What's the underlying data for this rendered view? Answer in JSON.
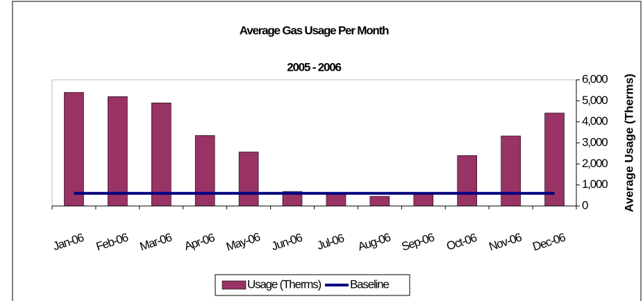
{
  "chart_data": {
    "type": "bar",
    "title": "Average Gas Usage Per Month",
    "subtitle": "2005 - 2006",
    "ylabel": "Average Usage (Therms)",
    "yaxis_side": "right",
    "categories": [
      "Jan-06",
      "Feb-06",
      "Mar-06",
      "Apr-06",
      "May-06",
      "Jun-06",
      "Jul-06",
      "Aug-06",
      "Sep-06",
      "Oct-06",
      "Nov-06",
      "Dec-06"
    ],
    "series": [
      {
        "name": "Usage (Therms)",
        "type": "bar",
        "color": "#993366",
        "values": [
          5400,
          5200,
          4900,
          3350,
          2570,
          690,
          650,
          460,
          640,
          2400,
          3330,
          4420
        ]
      },
      {
        "name": "Baseline",
        "type": "line",
        "color": "#000080",
        "values": [
          600,
          600,
          600,
          600,
          600,
          600,
          600,
          600,
          600,
          600,
          600,
          600
        ]
      }
    ],
    "ylim": [
      0,
      6000
    ],
    "yticks": [
      0,
      {
        "value": 1000,
        "label": "1,000"
      },
      {
        "value": 2000,
        "label": "2,000"
      },
      {
        "value": 3000,
        "label": "3,000"
      },
      {
        "value": 4000,
        "label": "4,000"
      },
      {
        "value": 5000,
        "label": "5,000"
      },
      {
        "value": 6000,
        "label": "6,000"
      }
    ],
    "legend": "bottom"
  }
}
